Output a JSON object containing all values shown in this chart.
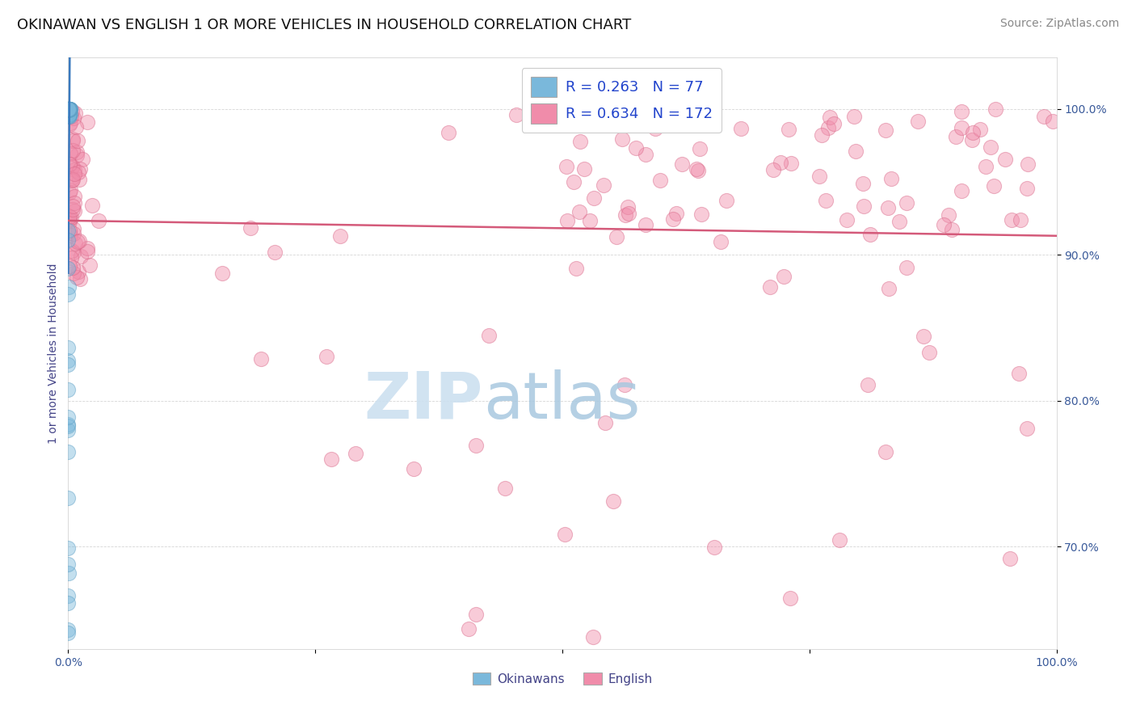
{
  "title": "OKINAWAN VS ENGLISH 1 OR MORE VEHICLES IN HOUSEHOLD CORRELATION CHART",
  "source": "Source: ZipAtlas.com",
  "ylabel": "1 or more Vehicles in Household",
  "xlim": [
    0.0,
    100.0
  ],
  "ylim": [
    63.0,
    103.5
  ],
  "y_ticks": [
    70.0,
    80.0,
    90.0,
    100.0
  ],
  "y_tick_labels": [
    "70.0%",
    "80.0%",
    "90.0%",
    "100.0%"
  ],
  "legend_labels": [
    "Okinawans",
    "English"
  ],
  "legend_r": [
    0.263,
    0.634
  ],
  "legend_n": [
    77,
    172
  ],
  "okinawan_color": "#7ab8db",
  "okinawan_edge_color": "#5a9ec4",
  "english_color": "#f08caa",
  "english_edge_color": "#d96888",
  "okinawan_line_color": "#3a7abf",
  "english_line_color": "#d45a7a",
  "title_fontsize": 13,
  "source_fontsize": 10,
  "axis_label_fontsize": 10,
  "tick_fontsize": 10,
  "legend_fontsize": 13,
  "watermark_zip_color": "#cce0f0",
  "watermark_atlas_color": "#a8c8e0",
  "ok_seed": 10,
  "eng_seed": 7
}
